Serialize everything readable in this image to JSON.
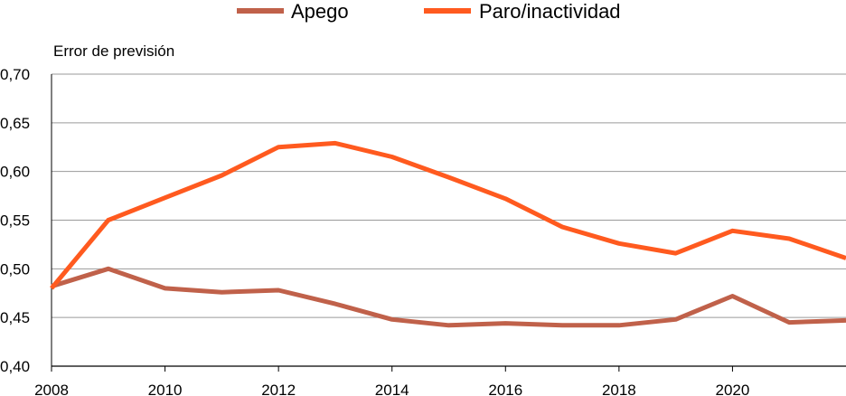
{
  "chart_data": {
    "type": "line",
    "title": "",
    "xlabel": "",
    "ylabel": "Error de previsión",
    "x": [
      2008,
      2009,
      2010,
      2011,
      2012,
      2013,
      2014,
      2015,
      2016,
      2017,
      2018,
      2019,
      2020,
      2021,
      2022
    ],
    "xlim": [
      2008,
      2022
    ],
    "ylim": [
      0.4,
      0.7
    ],
    "x_ticks": [
      "2008",
      "2010",
      "2012",
      "2014",
      "2016",
      "2018",
      "2020"
    ],
    "y_ticks": [
      "0,40",
      "0,45",
      "0,50",
      "0,55",
      "0,60",
      "0,65",
      "0,70"
    ],
    "grid": true,
    "legend_position": "top-center",
    "series": [
      {
        "name": "Apego",
        "color": "#C0614A",
        "values": [
          0.482,
          0.5,
          0.48,
          0.476,
          0.478,
          0.464,
          0.448,
          0.442,
          0.444,
          0.442,
          0.442,
          0.448,
          0.472,
          0.445,
          0.447
        ]
      },
      {
        "name": "Paro/inactividad",
        "color": "#FF5A1F",
        "values": [
          0.48,
          0.55,
          0.573,
          0.596,
          0.625,
          0.629,
          0.615,
          0.594,
          0.572,
          0.543,
          0.526,
          0.516,
          0.539,
          0.531,
          0.511
        ]
      }
    ]
  }
}
